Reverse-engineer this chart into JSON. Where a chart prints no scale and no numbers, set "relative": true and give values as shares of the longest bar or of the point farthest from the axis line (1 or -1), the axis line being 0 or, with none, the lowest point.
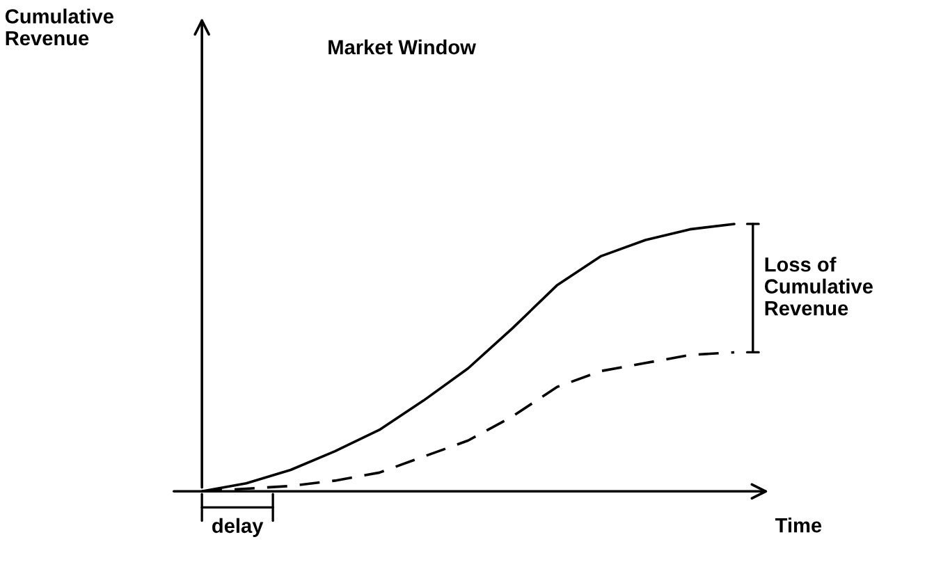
{
  "chart_data": {
    "type": "line",
    "title": "Market Window",
    "xlabel": "Time",
    "relative": true,
    "marker": "none",
    "categories": [
      null,
      null,
      null,
      null,
      null,
      null,
      null,
      null,
      null,
      null,
      null,
      null,
      null
    ],
    "series": [
      {
        "color": "#000000",
        "line_style": "solid",
        "values": [
          0,
          0.03,
          0.08,
          0.15,
          0.23,
          0.34,
          0.46,
          0.61,
          0.77,
          0.88,
          0.94,
          0.98,
          1
        ]
      },
      {
        "color": "#000000",
        "line_style": "dashed",
        "values": [
          0,
          0.01,
          0.02,
          0.04,
          0.07,
          0.13,
          0.19,
          0.28,
          0.39,
          0.45,
          0.48,
          0.51,
          0.52
        ]
      }
    ],
    "annotations": [
      "Cumulative\nRevenue",
      "Loss of\nCumulative\nRevenue",
      "delay"
    ]
  }
}
